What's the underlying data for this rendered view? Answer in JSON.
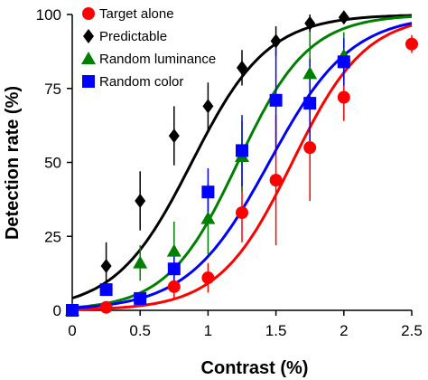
{
  "chart_data": {
    "type": "scatter",
    "xlabel": "Contrast  (%)",
    "ylabel": "Detection rate  (%)",
    "xlim": [
      0,
      2.5
    ],
    "ylim": [
      0,
      100
    ],
    "x_ticks": [
      "0",
      "0.5",
      "1",
      "1.5",
      "2",
      "2.5"
    ],
    "y_ticks": [
      "0",
      "25",
      "50",
      "75",
      "100"
    ],
    "grid": false,
    "legend_position": "top-left",
    "series": [
      {
        "name": "Target alone",
        "color": "#ff0000",
        "marker": "circle",
        "x": [
          0,
          0.25,
          0.5,
          0.75,
          1.0,
          1.25,
          1.5,
          1.75,
          2.0,
          2.5
        ],
        "y": [
          0,
          1,
          4,
          8,
          11,
          33,
          44,
          55,
          72,
          90
        ],
        "err": [
          0,
          1.5,
          2,
          4,
          5,
          10,
          22,
          18,
          8,
          3
        ],
        "fit": {
          "x50": 1.62,
          "slope": 0.27
        }
      },
      {
        "name": "Predictable",
        "color": "#000000",
        "marker": "diamond",
        "x": [
          0.25,
          0.5,
          0.75,
          1.0,
          1.25,
          1.5,
          1.75,
          2.0
        ],
        "y": [
          15,
          37,
          59,
          69,
          82,
          91,
          97,
          99
        ],
        "err": [
          8,
          10,
          10,
          8,
          6,
          5,
          3,
          2
        ],
        "fit": {
          "x50": 0.88,
          "slope": 0.28
        }
      },
      {
        "name": "Random luminance",
        "color": "#008000",
        "marker": "triangle",
        "x": [
          0,
          0.5,
          0.75,
          1.0,
          1.25,
          1.75,
          2.0
        ],
        "y": [
          0,
          16,
          20,
          31,
          52,
          80,
          86
        ],
        "err": [
          0,
          6,
          10,
          12,
          12,
          14,
          8
        ],
        "fit": {
          "x50": 1.22,
          "slope": 0.26
        }
      },
      {
        "name": "Random color",
        "color": "#0000ff",
        "marker": "square",
        "x": [
          0,
          0.25,
          0.5,
          0.75,
          1.0,
          1.25,
          1.5,
          1.75,
          2.0
        ],
        "y": [
          0,
          7,
          4,
          14,
          40,
          54,
          71,
          70,
          84
        ],
        "err": [
          0,
          2,
          2,
          5,
          8,
          12,
          18,
          15,
          8
        ],
        "fit": {
          "x50": 1.45,
          "slope": 0.3
        }
      }
    ]
  }
}
